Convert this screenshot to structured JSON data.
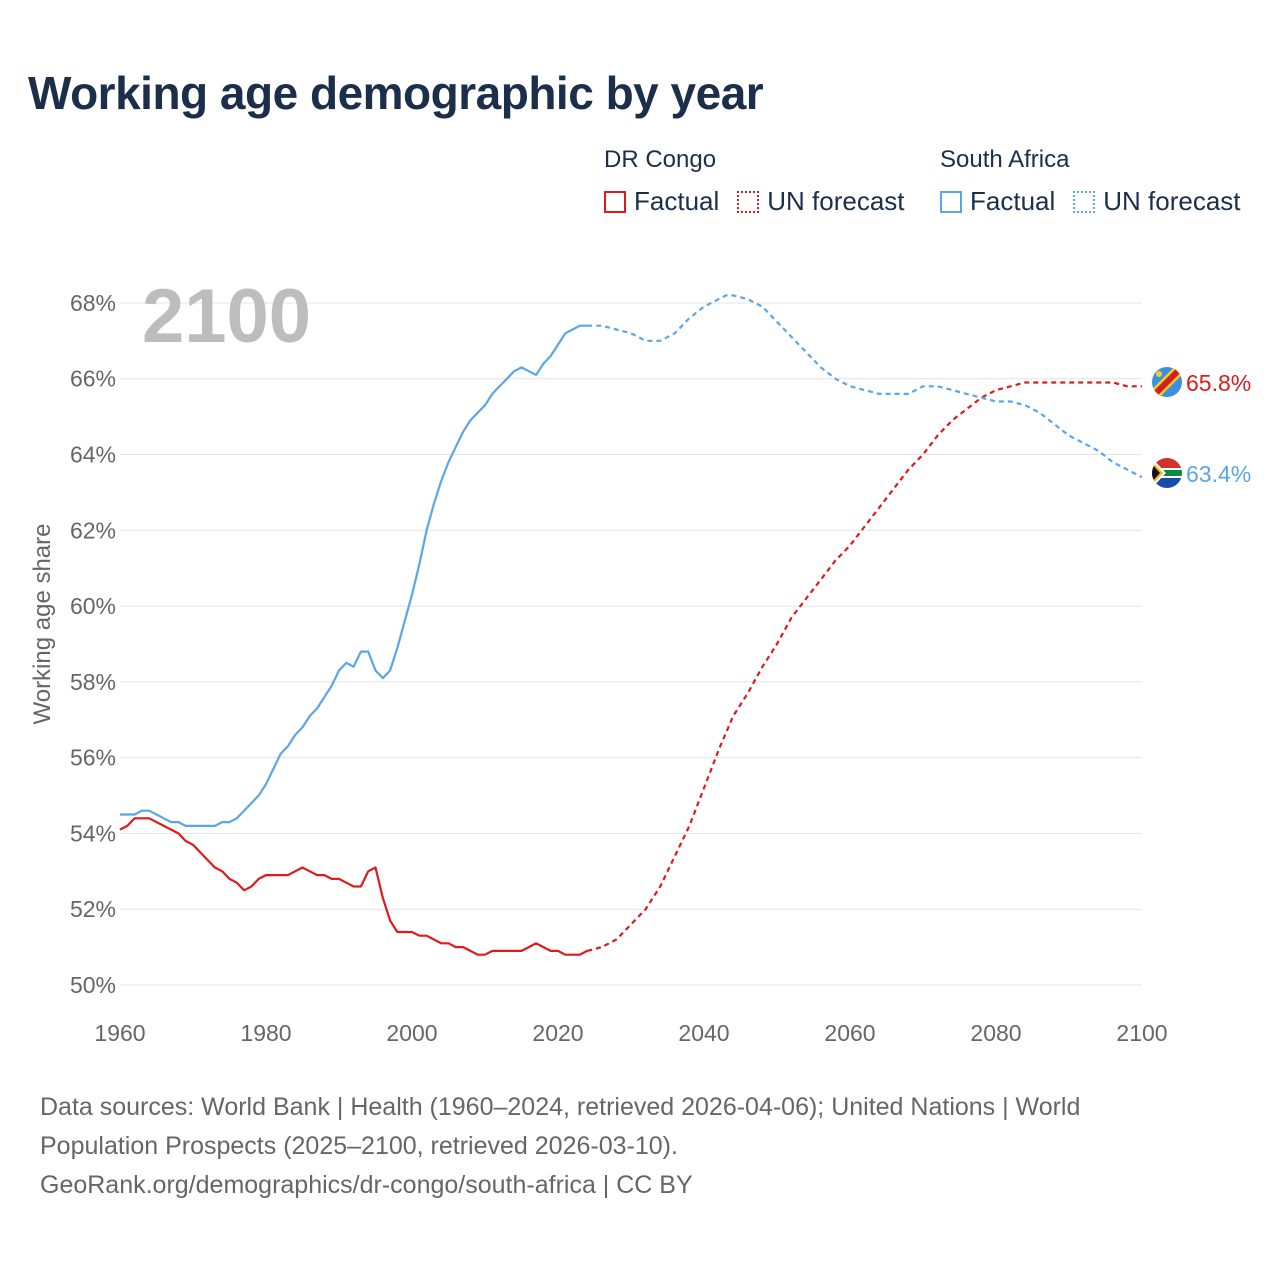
{
  "chart_data": {
    "type": "line",
    "title": "Working age demographic by year",
    "ylabel": "Working age share",
    "xlabel": "",
    "xlim": [
      1960,
      2100
    ],
    "ylim": [
      50,
      68.5
    ],
    "xticks": [
      "1960",
      "1980",
      "2000",
      "2020",
      "2040",
      "2060",
      "2080",
      "2100"
    ],
    "xtick_values": [
      1960,
      1980,
      2000,
      2020,
      2040,
      2060,
      2080,
      2100
    ],
    "yticks": [
      "50%",
      "52%",
      "54%",
      "56%",
      "58%",
      "60%",
      "62%",
      "64%",
      "66%",
      "68%"
    ],
    "ytick_values": [
      50,
      52,
      54,
      56,
      58,
      60,
      62,
      64,
      66,
      68
    ],
    "year_label": "2100",
    "series": [
      {
        "name": "DR Congo",
        "color": "#e01a1a",
        "end_label": "65.8%",
        "factual_points": [
          [
            1960,
            54.1
          ],
          [
            1961,
            54.2
          ],
          [
            1962,
            54.4
          ],
          [
            1963,
            54.4
          ],
          [
            1964,
            54.4
          ],
          [
            1966,
            54.2
          ],
          [
            1968,
            54.0
          ],
          [
            1969,
            53.8
          ],
          [
            1970,
            53.7
          ],
          [
            1972,
            53.3
          ],
          [
            1973,
            53.1
          ],
          [
            1974,
            53.0
          ],
          [
            1975,
            52.8
          ],
          [
            1976,
            52.7
          ],
          [
            1977,
            52.5
          ],
          [
            1978,
            52.6
          ],
          [
            1979,
            52.8
          ],
          [
            1980,
            52.9
          ],
          [
            1981,
            52.9
          ],
          [
            1982,
            52.9
          ],
          [
            1983,
            52.9
          ],
          [
            1984,
            53.0
          ],
          [
            1985,
            53.1
          ],
          [
            1986,
            53.0
          ],
          [
            1987,
            52.9
          ],
          [
            1988,
            52.9
          ],
          [
            1989,
            52.8
          ],
          [
            1990,
            52.8
          ],
          [
            1991,
            52.7
          ],
          [
            1992,
            52.6
          ],
          [
            1993,
            52.6
          ],
          [
            1994,
            53.0
          ],
          [
            1995,
            53.1
          ],
          [
            1996,
            52.3
          ],
          [
            1997,
            51.7
          ],
          [
            1998,
            51.4
          ],
          [
            1999,
            51.4
          ],
          [
            2000,
            51.4
          ],
          [
            2001,
            51.3
          ],
          [
            2002,
            51.3
          ],
          [
            2003,
            51.2
          ],
          [
            2004,
            51.1
          ],
          [
            2005,
            51.1
          ],
          [
            2006,
            51.0
          ],
          [
            2007,
            51.0
          ],
          [
            2008,
            50.9
          ],
          [
            2009,
            50.8
          ],
          [
            2010,
            50.8
          ],
          [
            2011,
            50.9
          ],
          [
            2012,
            50.9
          ],
          [
            2013,
            50.9
          ],
          [
            2014,
            50.9
          ],
          [
            2015,
            50.9
          ],
          [
            2016,
            51.0
          ],
          [
            2017,
            51.1
          ],
          [
            2018,
            51.0
          ],
          [
            2019,
            50.9
          ],
          [
            2020,
            50.9
          ],
          [
            2021,
            50.8
          ],
          [
            2022,
            50.8
          ],
          [
            2023,
            50.8
          ],
          [
            2024,
            50.9
          ]
        ],
        "forecast_points": [
          [
            2024,
            50.9
          ],
          [
            2026,
            51.0
          ],
          [
            2028,
            51.2
          ],
          [
            2030,
            51.6
          ],
          [
            2032,
            52.0
          ],
          [
            2034,
            52.6
          ],
          [
            2036,
            53.4
          ],
          [
            2038,
            54.2
          ],
          [
            2040,
            55.2
          ],
          [
            2042,
            56.2
          ],
          [
            2044,
            57.1
          ],
          [
            2046,
            57.7
          ],
          [
            2048,
            58.4
          ],
          [
            2050,
            59.0
          ],
          [
            2052,
            59.7
          ],
          [
            2054,
            60.2
          ],
          [
            2056,
            60.7
          ],
          [
            2058,
            61.2
          ],
          [
            2060,
            61.6
          ],
          [
            2062,
            62.1
          ],
          [
            2064,
            62.6
          ],
          [
            2066,
            63.1
          ],
          [
            2068,
            63.6
          ],
          [
            2070,
            64.0
          ],
          [
            2072,
            64.5
          ],
          [
            2074,
            64.9
          ],
          [
            2076,
            65.2
          ],
          [
            2078,
            65.5
          ],
          [
            2080,
            65.7
          ],
          [
            2082,
            65.8
          ],
          [
            2084,
            65.9
          ],
          [
            2086,
            65.9
          ],
          [
            2088,
            65.9
          ],
          [
            2090,
            65.9
          ],
          [
            2092,
            65.9
          ],
          [
            2094,
            65.9
          ],
          [
            2096,
            65.9
          ],
          [
            2098,
            65.8
          ],
          [
            2100,
            65.8
          ]
        ]
      },
      {
        "name": "South Africa",
        "color": "#5aa6e6",
        "end_label": "63.4%",
        "factual_points": [
          [
            1960,
            54.5
          ],
          [
            1961,
            54.5
          ],
          [
            1962,
            54.5
          ],
          [
            1963,
            54.6
          ],
          [
            1964,
            54.6
          ],
          [
            1965,
            54.5
          ],
          [
            1966,
            54.4
          ],
          [
            1967,
            54.3
          ],
          [
            1968,
            54.3
          ],
          [
            1969,
            54.2
          ],
          [
            1970,
            54.2
          ],
          [
            1971,
            54.2
          ],
          [
            1972,
            54.2
          ],
          [
            1973,
            54.2
          ],
          [
            1974,
            54.3
          ],
          [
            1975,
            54.3
          ],
          [
            1976,
            54.4
          ],
          [
            1977,
            54.6
          ],
          [
            1978,
            54.8
          ],
          [
            1979,
            55.0
          ],
          [
            1980,
            55.3
          ],
          [
            1981,
            55.7
          ],
          [
            1982,
            56.1
          ],
          [
            1983,
            56.3
          ],
          [
            1984,
            56.6
          ],
          [
            1985,
            56.8
          ],
          [
            1986,
            57.1
          ],
          [
            1987,
            57.3
          ],
          [
            1988,
            57.6
          ],
          [
            1989,
            57.9
          ],
          [
            1990,
            58.3
          ],
          [
            1991,
            58.5
          ],
          [
            1992,
            58.4
          ],
          [
            1993,
            58.8
          ],
          [
            1994,
            58.8
          ],
          [
            1995,
            58.3
          ],
          [
            1996,
            58.1
          ],
          [
            1997,
            58.3
          ],
          [
            1998,
            58.9
          ],
          [
            1999,
            59.6
          ],
          [
            2000,
            60.3
          ],
          [
            2001,
            61.1
          ],
          [
            2002,
            62.0
          ],
          [
            2003,
            62.7
          ],
          [
            2004,
            63.3
          ],
          [
            2005,
            63.8
          ],
          [
            2006,
            64.2
          ],
          [
            2007,
            64.6
          ],
          [
            2008,
            64.9
          ],
          [
            2009,
            65.1
          ],
          [
            2010,
            65.3
          ],
          [
            2011,
            65.6
          ],
          [
            2012,
            65.8
          ],
          [
            2013,
            66.0
          ],
          [
            2014,
            66.2
          ],
          [
            2015,
            66.3
          ],
          [
            2016,
            66.2
          ],
          [
            2017,
            66.1
          ],
          [
            2018,
            66.4
          ],
          [
            2019,
            66.6
          ],
          [
            2020,
            66.9
          ],
          [
            2021,
            67.2
          ],
          [
            2022,
            67.3
          ],
          [
            2023,
            67.4
          ],
          [
            2024,
            67.4
          ]
        ],
        "forecast_points": [
          [
            2024,
            67.4
          ],
          [
            2026,
            67.4
          ],
          [
            2028,
            67.3
          ],
          [
            2030,
            67.2
          ],
          [
            2032,
            67.0
          ],
          [
            2034,
            67.0
          ],
          [
            2036,
            67.2
          ],
          [
            2038,
            67.6
          ],
          [
            2040,
            67.9
          ],
          [
            2042,
            68.1
          ],
          [
            2043,
            68.2
          ],
          [
            2044,
            68.2
          ],
          [
            2046,
            68.1
          ],
          [
            2048,
            67.9
          ],
          [
            2050,
            67.5
          ],
          [
            2052,
            67.1
          ],
          [
            2054,
            66.7
          ],
          [
            2056,
            66.3
          ],
          [
            2058,
            66.0
          ],
          [
            2060,
            65.8
          ],
          [
            2062,
            65.7
          ],
          [
            2064,
            65.6
          ],
          [
            2066,
            65.6
          ],
          [
            2068,
            65.6
          ],
          [
            2070,
            65.8
          ],
          [
            2072,
            65.8
          ],
          [
            2074,
            65.7
          ],
          [
            2076,
            65.6
          ],
          [
            2078,
            65.5
          ],
          [
            2080,
            65.4
          ],
          [
            2082,
            65.4
          ],
          [
            2084,
            65.3
          ],
          [
            2086,
            65.1
          ],
          [
            2088,
            64.8
          ],
          [
            2090,
            64.5
          ],
          [
            2092,
            64.3
          ],
          [
            2094,
            64.1
          ],
          [
            2096,
            63.8
          ],
          [
            2098,
            63.6
          ],
          [
            2100,
            63.4
          ]
        ]
      }
    ]
  },
  "legend": {
    "groups": [
      {
        "name": "DR Congo",
        "factual_label": "Factual",
        "forecast_label": "UN forecast",
        "color": "#e01a1a"
      },
      {
        "name": "South Africa",
        "factual_label": "Factual",
        "forecast_label": "UN forecast",
        "color": "#5aa6e6"
      }
    ]
  },
  "sources": {
    "line1": "Data sources: World Bank | Health (1960–2024, retrieved 2026-04-06); United Nations | World",
    "line2": "Population Prospects (2025–2100, retrieved 2026-03-10).",
    "line3": "GeoRank.org/demographics/dr-congo/south-africa | CC BY"
  }
}
